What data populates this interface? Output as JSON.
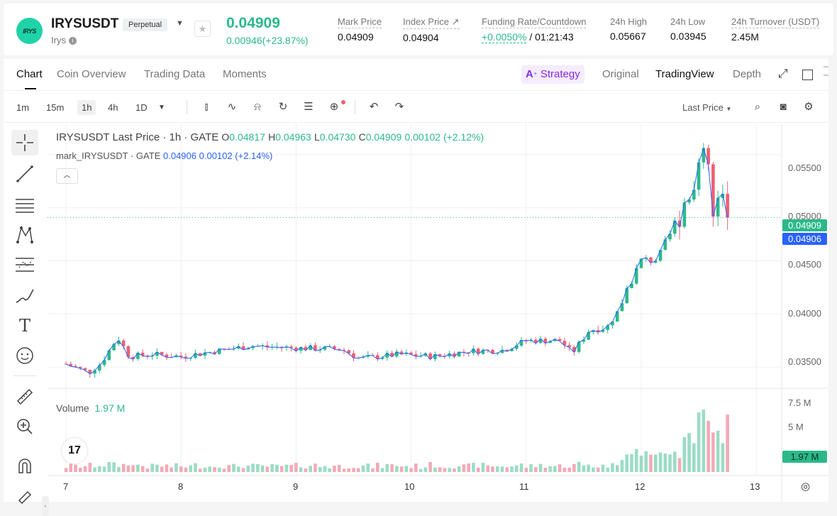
{
  "header": {
    "logo_text": "IRYS",
    "symbol": "IRYSUSDT",
    "contract_type": "Perpetual",
    "name": "Irys",
    "last_price": "0.04909",
    "change": "0.00946(+23.87%)",
    "stats": [
      {
        "label": "Mark Price",
        "value": "0.04909"
      },
      {
        "label": "Index Price ↗",
        "value": "0.04904"
      },
      {
        "label": "Funding Rate/Countdown",
        "value_green": "+0.0050%",
        "value": " / 01:21:43"
      },
      {
        "label": "24h High",
        "value": "0.05667"
      },
      {
        "label": "24h Low",
        "value": "0.03945"
      },
      {
        "label": "24h Turnover (USDT)",
        "value": "2.45M"
      }
    ]
  },
  "tabs": {
    "left": [
      "Chart",
      "Coin Overview",
      "Trading Data",
      "Moments"
    ],
    "strategy": "Strategy",
    "right": [
      "Original",
      "TradingView",
      "Depth"
    ]
  },
  "toolbar": {
    "timeframes": [
      "1m",
      "15m",
      "1h",
      "4h",
      "1D"
    ],
    "active_timeframe": "1h",
    "price_type": "Last Price"
  },
  "chart": {
    "legend_main": "IRYSUSDT Last Price · 1h · GATE",
    "ohlc": {
      "o": "0.04817",
      "h": "0.04963",
      "l": "0.04730",
      "c": "0.04909",
      "chg": "0.00102 (+2.12%)"
    },
    "legend_mark": "mark_IRYSUSDT · GATE",
    "mark_val": "0.04906",
    "mark_chg": "0.00102 (+2.14%)",
    "volume_label": "Volume",
    "volume_value": "1.97 M",
    "price_tag_last": "0.04909",
    "price_tag_mark": "0.04906",
    "volume_tag": "1.97 M",
    "colors": {
      "up": "#2bb98a",
      "down": "#ef5f73",
      "mark": "#2962ff"
    }
  },
  "chart_data": {
    "type": "candlestick",
    "y_ticks": [
      "0.05500",
      "0.05000",
      "0.04500",
      "0.04000",
      "0.03500"
    ],
    "y_tick_values": [
      0.055,
      0.05,
      0.045,
      0.04,
      0.035
    ],
    "ylim": [
      0.0328,
      0.0572
    ],
    "vol_ticks": [
      "7.5 M",
      "5 M"
    ],
    "vol_ylim": [
      0,
      9
    ],
    "x_ticks": [
      "7",
      "8",
      "9",
      "10",
      "11",
      "12",
      "13"
    ],
    "x_tick_positions": [
      0,
      1,
      2,
      3,
      4,
      5,
      6
    ],
    "last_value": 0.04909,
    "anchors": [
      [
        0,
        0.0353
      ],
      [
        0.2,
        0.0345
      ],
      [
        0.3,
        0.0353
      ],
      [
        0.45,
        0.0378
      ],
      [
        0.55,
        0.036
      ],
      [
        0.75,
        0.0362
      ],
      [
        1.0,
        0.036
      ],
      [
        1.3,
        0.0365
      ],
      [
        1.6,
        0.037
      ],
      [
        2.0,
        0.0368
      ],
      [
        2.4,
        0.0367
      ],
      [
        2.55,
        0.0358
      ],
      [
        2.9,
        0.0362
      ],
      [
        3.2,
        0.036
      ],
      [
        3.5,
        0.0365
      ],
      [
        3.8,
        0.0366
      ],
      [
        4.0,
        0.0375
      ],
      [
        4.3,
        0.0375
      ],
      [
        4.4,
        0.0363
      ],
      [
        4.55,
        0.0385
      ],
      [
        4.7,
        0.0387
      ],
      [
        4.8,
        0.0403
      ],
      [
        4.88,
        0.0425
      ],
      [
        5.0,
        0.045
      ],
      [
        5.15,
        0.0452
      ],
      [
        5.25,
        0.0475
      ],
      [
        5.35,
        0.05
      ],
      [
        5.5,
        0.054
      ],
      [
        5.58,
        0.0545
      ],
      [
        5.62,
        0.0485
      ],
      [
        5.68,
        0.051
      ],
      [
        5.75,
        0.049
      ],
      [
        5.78,
        0.0491
      ]
    ]
  }
}
